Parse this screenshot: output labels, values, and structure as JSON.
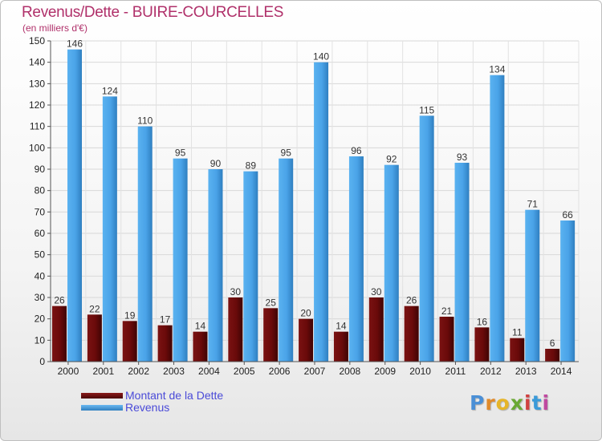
{
  "title": "Revenus/Dette - BUIRE-COURCELLES",
  "subtitle": "(en milliers d'€)",
  "colors": {
    "title": "#b0306a",
    "dette": "#6a0a0a",
    "revenus": "#4aa3e8",
    "legend_text": "#4a4ad8"
  },
  "legend": {
    "dette_label": "Montant de la Dette",
    "revenus_label": "Revenus"
  },
  "logo_text": "Proxiti",
  "chart_data": {
    "type": "bar",
    "categories": [
      "2000",
      "2001",
      "2002",
      "2003",
      "2004",
      "2005",
      "2006",
      "2007",
      "2008",
      "2009",
      "2010",
      "2011",
      "2012",
      "2013",
      "2014"
    ],
    "series": [
      {
        "name": "Montant de la Dette",
        "values": [
          26,
          22,
          19,
          17,
          14,
          30,
          25,
          20,
          14,
          30,
          26,
          21,
          16,
          11,
          6
        ]
      },
      {
        "name": "Revenus",
        "values": [
          146,
          124,
          110,
          95,
          90,
          89,
          95,
          140,
          96,
          92,
          115,
          93,
          134,
          71,
          66
        ]
      }
    ],
    "ylim": [
      0,
      150
    ],
    "yticks": [
      0,
      10,
      20,
      30,
      40,
      50,
      60,
      70,
      80,
      90,
      100,
      110,
      120,
      130,
      140,
      150
    ],
    "grid": true,
    "legend_position": "bottom-left"
  }
}
